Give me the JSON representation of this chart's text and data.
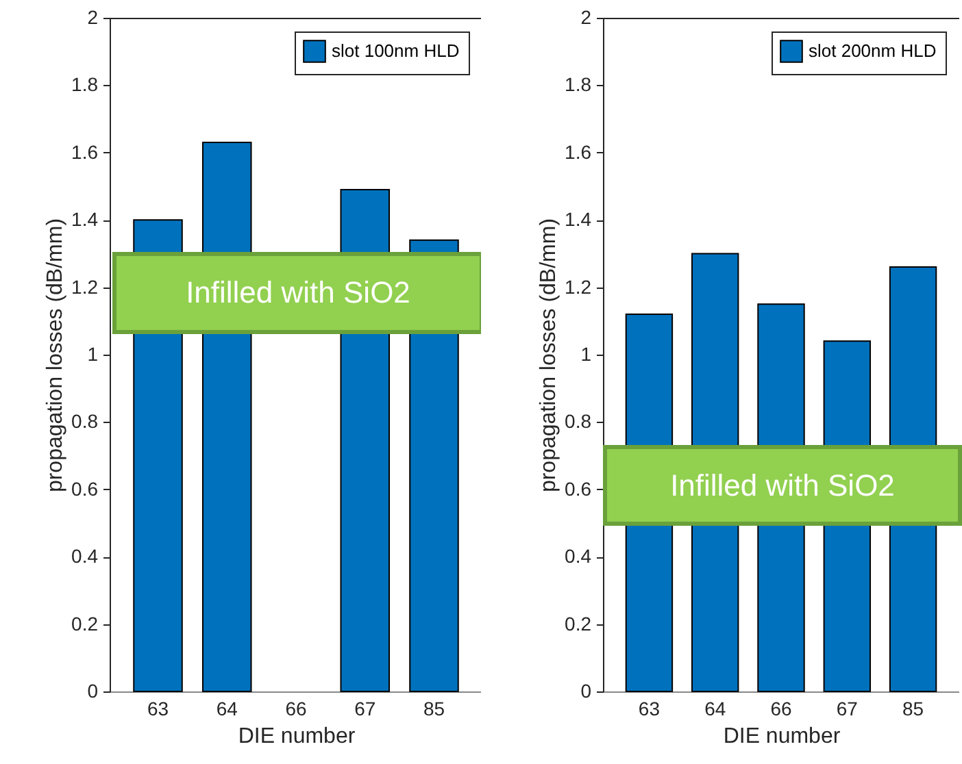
{
  "chart_data": [
    {
      "type": "bar",
      "xlabel": "DIE number",
      "ylabel": "propagation losses (dB/mm)",
      "categories": [
        "63",
        "64",
        "66",
        "67",
        "85"
      ],
      "series": [
        {
          "name": "slot 100nm HLD",
          "color": "#0072bd",
          "values": [
            1.4,
            1.63,
            null,
            1.49,
            1.34
          ]
        }
      ],
      "ylim": [
        0,
        2
      ],
      "yticks": [
        0,
        0.2,
        0.4,
        0.6,
        0.8,
        1,
        1.2,
        1.4,
        1.6,
        1.8,
        2
      ],
      "grid": false,
      "legend": "top right",
      "annotations": [
        "Infilled with SiO2"
      ]
    },
    {
      "type": "bar",
      "xlabel": "DIE number",
      "ylabel": "propagation losses (dB/mm)",
      "categories": [
        "63",
        "64",
        "66",
        "67",
        "85"
      ],
      "series": [
        {
          "name": "slot 200nm HLD",
          "color": "#0072bd",
          "values": [
            1.12,
            1.3,
            1.15,
            1.04,
            1.26
          ]
        }
      ],
      "ylim": [
        0,
        2
      ],
      "yticks": [
        0,
        0.2,
        0.4,
        0.6,
        0.8,
        1,
        1.2,
        1.4,
        1.6,
        1.8,
        2
      ],
      "grid": false,
      "legend": "top right",
      "annotations": [
        "Infilled with SiO2"
      ]
    }
  ]
}
